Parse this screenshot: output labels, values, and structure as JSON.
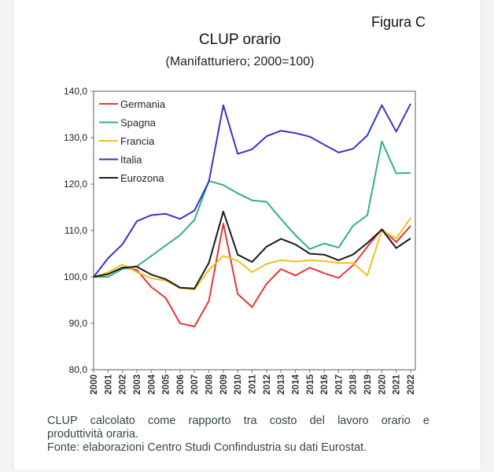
{
  "figure_label": "Figura C",
  "caption": {
    "line1": "CLUP calcolato come rapporto tra costo del lavoro orario e",
    "line2": "produttività oraria.",
    "source": "Fonte: elaborazioni Centro Studi Confindustria su dati Eurostat."
  },
  "chart_data": {
    "type": "line",
    "title": "CLUP orario",
    "subtitle": "(Manifatturiero; 2000=100)",
    "xlabel": "",
    "ylabel": "",
    "ylim": [
      80,
      140
    ],
    "yticks": [
      "80,0",
      "90,0",
      "100,0",
      "110,0",
      "120,0",
      "130,0",
      "140,0"
    ],
    "ytick_values": [
      80,
      90,
      100,
      110,
      120,
      130,
      140
    ],
    "grid": false,
    "legend": "top-left",
    "x": [
      "2000",
      "2001",
      "2002",
      "2003",
      "2004",
      "2005",
      "2006",
      "2007",
      "2008",
      "2009",
      "2010",
      "2011",
      "2012",
      "2013",
      "2014",
      "2015",
      "2016",
      "2017",
      "2018",
      "2019",
      "2020",
      "2021",
      "2022"
    ],
    "series": [
      {
        "name": "Germania",
        "color": "#e8343a",
        "values": [
          100,
          100.6,
          102,
          101.5,
          97.8,
          95.5,
          90,
          89.3,
          94.8,
          111.5,
          96.3,
          93.5,
          98.5,
          101.7,
          100.3,
          102,
          100.8,
          99.8,
          102.5,
          106.5,
          110.3,
          107.5,
          111
        ]
      },
      {
        "name": "Spagna",
        "color": "#2fb37a",
        "values": [
          100,
          100,
          101.7,
          102.3,
          104.5,
          106.8,
          109,
          112.3,
          120.7,
          119.8,
          118,
          116.5,
          116.2,
          112.5,
          109,
          106,
          107.2,
          106.3,
          111,
          113.3,
          129.2,
          122.3,
          122.4
        ]
      },
      {
        "name": "Francia",
        "color": "#f2c01e",
        "values": [
          100,
          101,
          102.7,
          101,
          99.7,
          99.2,
          97.6,
          97.3,
          101.5,
          104.5,
          103.5,
          101,
          102.8,
          103.6,
          103.3,
          103.6,
          103.4,
          103,
          103,
          100.3,
          110,
          108.3,
          112.7
        ]
      },
      {
        "name": "Italia",
        "color": "#3535c8",
        "values": [
          100,
          104,
          107,
          112,
          113.3,
          113.6,
          112.5,
          114.3,
          120.5,
          137,
          126.5,
          127.5,
          130.3,
          131.5,
          131,
          130.2,
          128.5,
          126.8,
          127.6,
          130.5,
          137,
          131.3,
          137.3
        ]
      },
      {
        "name": "Eurozona",
        "color": "#1a1a1a",
        "values": [
          100,
          100.6,
          102,
          102.2,
          100.5,
          99.5,
          97.7,
          97.5,
          103,
          114.1,
          104.8,
          103.2,
          106.5,
          108.2,
          107,
          105,
          104.8,
          103.6,
          104.8,
          107.3,
          110.2,
          106.2,
          108.3
        ]
      }
    ]
  }
}
